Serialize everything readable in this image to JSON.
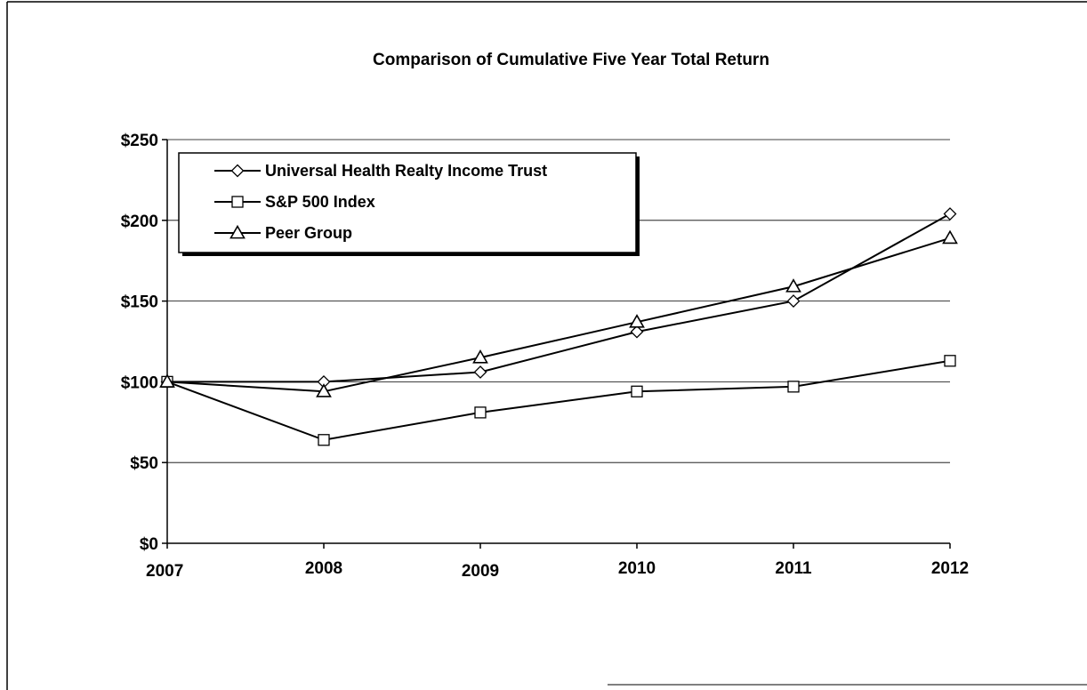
{
  "chart_data": {
    "type": "line",
    "title": "Comparison of Cumulative Five Year Total Return",
    "xlabel": "",
    "ylabel": "",
    "x": [
      "2007",
      "2008",
      "2009",
      "2010",
      "2011",
      "2012"
    ],
    "ylim": [
      0,
      250
    ],
    "yticks": [
      0,
      50,
      100,
      150,
      200,
      250
    ],
    "ytick_labels": [
      "$0",
      "$50",
      "$100",
      "$150",
      "$200",
      "$250"
    ],
    "grid": true,
    "legend_position": "top-left",
    "series": [
      {
        "name": "Universal Health Realty Income Trust",
        "marker": "diamond",
        "values": [
          100,
          100,
          106,
          131,
          150,
          204
        ]
      },
      {
        "name": "S&P 500 Index",
        "marker": "square",
        "values": [
          100,
          64,
          81,
          94,
          97,
          113
        ]
      },
      {
        "name": "Peer Group",
        "marker": "triangle",
        "values": [
          100,
          94,
          115,
          137,
          159,
          189
        ]
      }
    ],
    "colors": {
      "line": "#000000",
      "marker_fill": "#ffffff",
      "grid": "#000000"
    }
  }
}
